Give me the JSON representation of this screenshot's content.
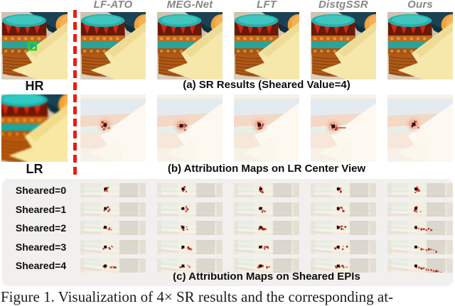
{
  "figure": {
    "method_headers": [
      "LF-ATO",
      "MEG-Net",
      "LFT",
      "DistgSSR",
      "Ours"
    ],
    "hr_label": "HR",
    "lr_label": "LR",
    "caption_a": "(a) SR Results (Sheared Value=4)",
    "caption_b": "(b) Attribution Maps on LR Center View",
    "caption_c": "(c) Attribution Maps on Sheared EPIs",
    "shear_labels": [
      "Sheared=0",
      "Sheared=1",
      "Sheared=2",
      "Sheared=3",
      "Sheared=4"
    ],
    "page_caption": "Figure 1. Visualization of 4× SR results and the corresponding at-",
    "colors": {
      "divider_red": "#ec1c14",
      "panel_gray": "#f1f0ee",
      "header_gray": "#878787",
      "annotation_green": "#29d429",
      "attribution_red": "#c5301c"
    }
  }
}
